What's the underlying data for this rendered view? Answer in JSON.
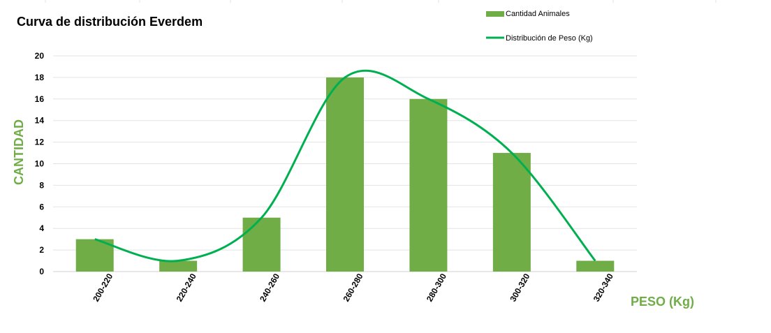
{
  "chart_data": {
    "type": "bar",
    "title": "Curva de distribución Everdem",
    "xlabel": "PESO (Kg)",
    "ylabel": "CANTIDAD",
    "categories": [
      "200-220",
      "220-240",
      "240-260",
      "260-280",
      "280-300",
      "300-320",
      "320-340"
    ],
    "series": [
      {
        "name": "Cantidad Animales",
        "type": "bar",
        "color": "#70ad47",
        "values": [
          3,
          1,
          5,
          18,
          16,
          11,
          1
        ]
      },
      {
        "name": "Distribución de Peso (Kg)",
        "type": "line",
        "smooth": true,
        "color": "#00b050",
        "values": [
          3,
          1,
          5,
          18,
          16,
          11,
          1
        ]
      }
    ],
    "ylim": [
      0,
      20
    ],
    "yticks": [
      0,
      2,
      4,
      6,
      8,
      10,
      12,
      14,
      16,
      18,
      20
    ],
    "grid": true,
    "legend": "top-right"
  }
}
